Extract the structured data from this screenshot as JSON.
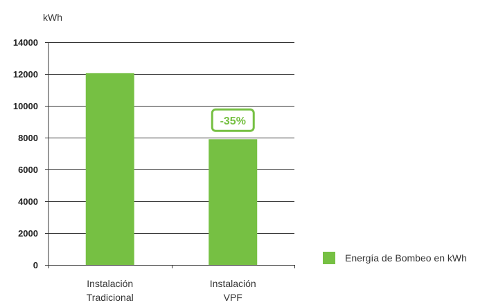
{
  "chart_data": {
    "type": "bar",
    "ylabel": "kWh",
    "xlabel": "",
    "title": "",
    "categories": [
      [
        "Instalación",
        "Tradicional"
      ],
      [
        "Instalación",
        "VPF"
      ]
    ],
    "series": [
      {
        "name": "Energía de Bombeo en kWh",
        "values": [
          12050,
          7900
        ]
      }
    ],
    "ylim": [
      0,
      14000
    ],
    "yticks": [
      0,
      2000,
      4000,
      6000,
      8000,
      10000,
      12000,
      14000
    ],
    "grid": true,
    "legend_position": "right",
    "annotations": [
      {
        "category_index": 1,
        "text": "-35%"
      }
    ],
    "colors": {
      "bar": "#76c043",
      "grid": "#333333",
      "annotation_border": "#76c043",
      "annotation_text": "#76c043"
    }
  }
}
